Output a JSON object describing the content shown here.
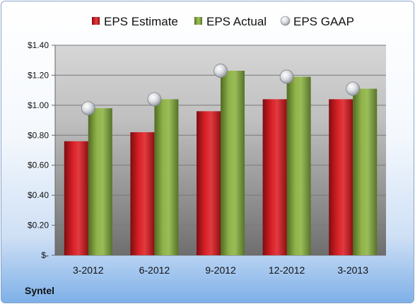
{
  "company": "Syntel",
  "colors": {
    "estimate": "#c8181e",
    "actual": "#7ea23c",
    "gaap": "#c9ccd2"
  },
  "chart_data": {
    "type": "bar",
    "categories": [
      "3-2012",
      "6-2012",
      "9-2012",
      "12-2012",
      "3-2013"
    ],
    "series": [
      {
        "name": "EPS Estimate",
        "values": [
          0.76,
          0.82,
          0.96,
          1.04,
          1.04
        ]
      },
      {
        "name": "EPS Actual",
        "values": [
          0.98,
          1.04,
          1.23,
          1.19,
          1.11
        ]
      },
      {
        "name": "EPS GAAP",
        "marker": "circle",
        "values": [
          0.98,
          1.04,
          1.23,
          1.19,
          1.11
        ]
      }
    ],
    "yticks": [
      "$-",
      "$0.20",
      "$0.40",
      "$0.60",
      "$0.80",
      "$1.00",
      "$1.20",
      "$1.40"
    ],
    "ylim": [
      0,
      1.4
    ],
    "grid": true,
    "legend": "top-center"
  }
}
